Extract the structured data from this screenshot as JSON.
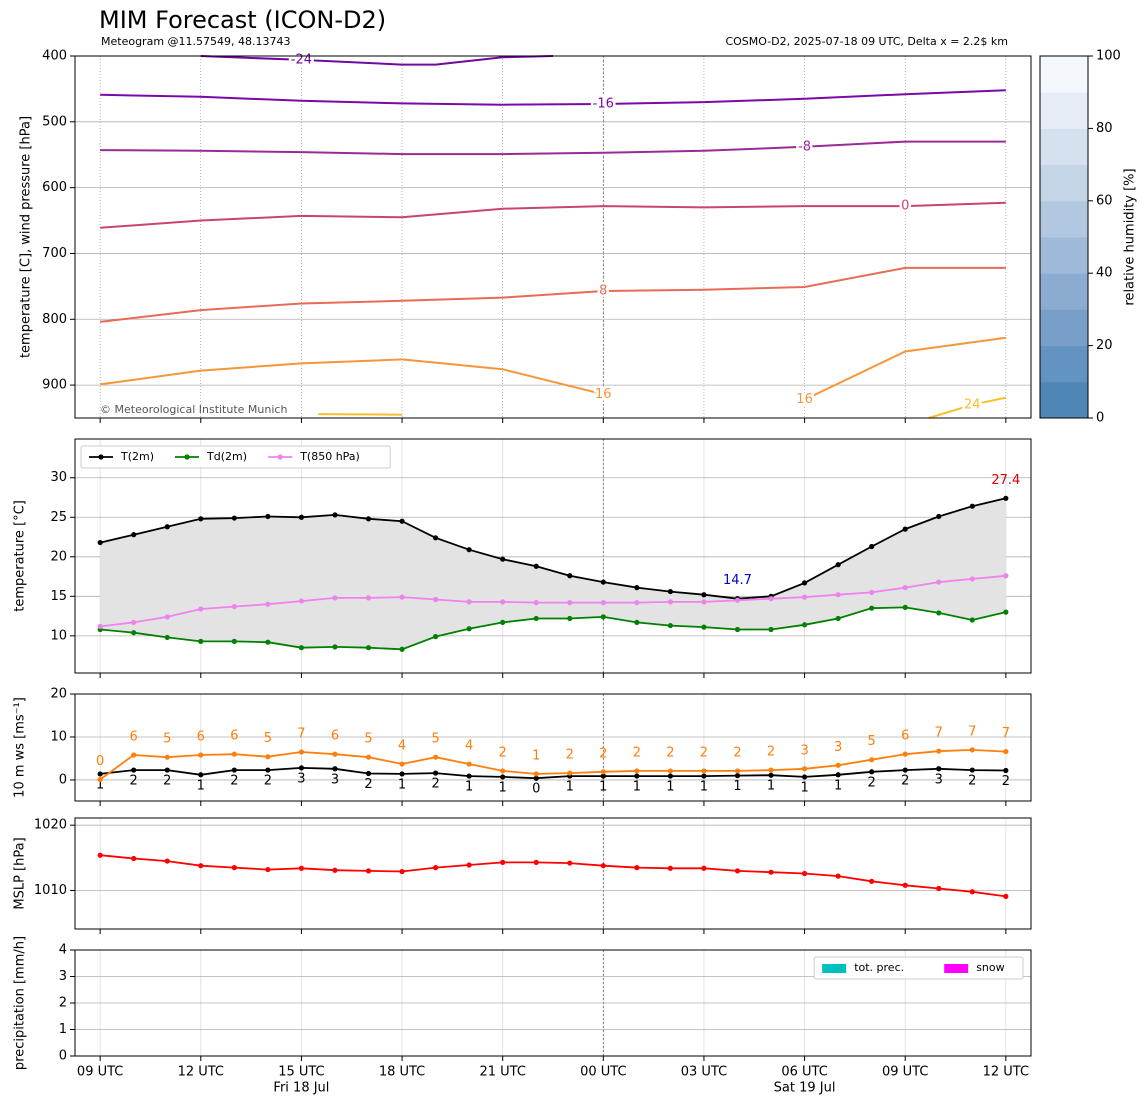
{
  "title": "MIM Forecast (ICON-D2)",
  "subtitle": "Meteogram @11.57549, 48.13743",
  "run_info": "COSMO-D2, 2025-07-18 09 UTC, Delta x = 2.2$ km",
  "credit": "© Meteorological Institute Munich",
  "time": {
    "x": [
      0,
      1,
      2,
      3,
      4,
      5,
      6,
      7,
      8,
      9,
      10,
      11,
      12,
      13,
      14,
      15,
      16,
      17,
      18,
      19,
      20,
      21,
      22,
      23,
      24,
      25,
      26,
      27
    ],
    "xlim": [
      -0.75,
      27.75
    ],
    "xticks": [
      {
        "value": 0,
        "label": "09 UTC"
      },
      {
        "value": 3,
        "label": "12 UTC"
      },
      {
        "value": 6,
        "label": "15 UTC"
      },
      {
        "value": 9,
        "label": "18 UTC"
      },
      {
        "value": 12,
        "label": "21 UTC"
      },
      {
        "value": 15,
        "label": "00 UTC"
      },
      {
        "value": 18,
        "label": "03 UTC"
      },
      {
        "value": 21,
        "label": "06 UTC"
      },
      {
        "value": 24,
        "label": "09 UTC"
      },
      {
        "value": 27,
        "label": "12 UTC"
      }
    ],
    "date_labels": [
      {
        "value": 6,
        "label": "Fri 18 Jul"
      },
      {
        "value": 21,
        "label": "Sat 19 Jul"
      }
    ],
    "day_break": 15
  },
  "chart_data": [
    {
      "type": "contour",
      "ylabel": "temperature [C], wind pressure [hPa]",
      "ylim": [
        950,
        400
      ],
      "yticks": [
        400,
        500,
        600,
        700,
        800,
        900
      ],
      "grid": true,
      "series": [
        {
          "name": "-24",
          "color": "#6f0aa0",
          "x": [
            3,
            6,
            9,
            10,
            12,
            13.5
          ],
          "values": [
            400,
            406,
            413,
            413,
            402,
            400
          ]
        },
        {
          "name": "-16",
          "color": "#7a0aa8",
          "x": [
            0,
            3,
            6,
            9,
            12,
            15,
            18,
            21,
            24,
            27
          ],
          "values": [
            459,
            462,
            468,
            472,
            474,
            473,
            470,
            465,
            458,
            452
          ]
        },
        {
          "name": "-8",
          "color": "#9a2a98",
          "x": [
            0,
            3,
            6,
            9,
            12,
            15,
            18,
            21,
            24,
            27
          ],
          "values": [
            543,
            544,
            546,
            549,
            549,
            547,
            544,
            538,
            530,
            530
          ]
        },
        {
          "name": "0",
          "color": "#c8456e",
          "x": [
            0,
            3,
            6,
            9,
            12,
            15,
            18,
            21,
            24,
            27
          ],
          "values": [
            661,
            650,
            643,
            645,
            632,
            628,
            630,
            628,
            628,
            623
          ]
        },
        {
          "name": "8",
          "color": "#e86b55",
          "x": [
            0,
            3,
            6,
            9,
            12,
            15,
            18,
            21,
            24,
            27
          ],
          "values": [
            804,
            786,
            776,
            772,
            767,
            757,
            755,
            751,
            722,
            722
          ]
        },
        {
          "name": "16",
          "color": "#f5963a",
          "x": [
            0,
            3,
            6,
            9,
            12,
            15,
            18,
            21,
            24,
            27
          ],
          "values": [
            899,
            878,
            867,
            861,
            876,
            914,
            null,
            922,
            849,
            828
          ]
        },
        {
          "name": "24",
          "color": "#f5c02a",
          "x": [
            6.5,
            9,
            17,
            24.7,
            26,
            27
          ],
          "values": [
            944,
            945,
            null,
            950,
            930,
            919
          ]
        }
      ],
      "colorbar": {
        "label": "relative humidity [%]",
        "lim": [
          0,
          100
        ],
        "ticks": [
          0,
          20,
          40,
          60,
          80,
          100
        ],
        "colors": [
          "#4f86b8",
          "#6393c0",
          "#779fc8",
          "#8bacd0",
          "#9fbad8",
          "#b2c8e0",
          "#c4d5e8",
          "#d5e1ef",
          "#e5ecf5",
          "#f4f8fc"
        ]
      }
    },
    {
      "type": "line",
      "ylabel": "temperature [°C]",
      "ylim": [
        5.3,
        34.9
      ],
      "yticks": [
        10,
        15,
        20,
        25,
        30
      ],
      "grid": true,
      "legend": "upper left",
      "fill_between": [
        0,
        1
      ],
      "series": [
        {
          "name": "T(2m)",
          "color": "#000000",
          "values": [
            21.8,
            22.8,
            23.8,
            24.8,
            24.9,
            25.1,
            25.0,
            25.3,
            24.8,
            24.5,
            22.4,
            20.9,
            19.7,
            18.8,
            17.6,
            16.8,
            16.1,
            15.6,
            15.2,
            14.7,
            15.0,
            16.7,
            19.0,
            21.3,
            23.5,
            25.1,
            26.4,
            27.4
          ]
        },
        {
          "name": "Td(2m)",
          "color": "#008000",
          "values": [
            10.8,
            10.4,
            9.8,
            9.3,
            9.3,
            9.2,
            8.5,
            8.6,
            8.5,
            8.3,
            9.9,
            10.9,
            11.7,
            12.2,
            12.2,
            12.4,
            11.7,
            11.3,
            11.1,
            10.8,
            10.8,
            11.4,
            12.2,
            13.5,
            13.6,
            12.9,
            12.0,
            13.0
          ]
        },
        {
          "name": "T(850 hPa)",
          "color": "#ee82ee",
          "values": [
            11.2,
            11.7,
            12.4,
            13.4,
            13.7,
            14.0,
            14.4,
            14.8,
            14.8,
            14.9,
            14.6,
            14.3,
            14.3,
            14.2,
            14.2,
            14.2,
            14.2,
            14.3,
            14.3,
            14.5,
            14.7,
            14.9,
            15.2,
            15.5,
            16.1,
            16.8,
            17.2,
            17.6
          ]
        }
      ],
      "annotations": [
        {
          "text": "27.4",
          "x": 27,
          "y": 27.4,
          "color": "#e00000"
        },
        {
          "text": "14.7",
          "x": 19,
          "y": 14.7,
          "color": "#0000cc"
        }
      ]
    },
    {
      "type": "line",
      "ylabel": "10 m ws [ms⁻¹]",
      "ylim": [
        -4.9,
        20
      ],
      "yticks": [
        0,
        10,
        20
      ],
      "grid": true,
      "series": [
        {
          "color": "#000000",
          "label_side": "below",
          "values": [
            1.4,
            2.3,
            2.3,
            1.2,
            2.3,
            2.3,
            2.8,
            2.6,
            1.5,
            1.4,
            1.6,
            0.9,
            0.7,
            0.4,
            0.9,
            0.9,
            0.9,
            0.9,
            0.9,
            1.0,
            1.1,
            0.7,
            1.2,
            1.9,
            2.3,
            2.6,
            2.3,
            2.2
          ],
          "value_labels": [
            "1",
            "2",
            "2",
            "1",
            "2",
            "2",
            "3",
            "3",
            "2",
            "1",
            "2",
            "1",
            "1",
            "0",
            "1",
            "1",
            "1",
            "1",
            "1",
            "1",
            "1",
            "1",
            "1",
            "2",
            "2",
            "3",
            "2",
            "2"
          ]
        },
        {
          "color": "#ff7f0e",
          "label_side": "above",
          "values": [
            0.1,
            5.8,
            5.3,
            5.8,
            6.0,
            5.4,
            6.5,
            6.0,
            5.3,
            3.7,
            5.3,
            3.7,
            2.1,
            1.4,
            1.6,
            1.9,
            2.1,
            2.1,
            2.1,
            2.1,
            2.3,
            2.6,
            3.4,
            4.7,
            6.0,
            6.7,
            7.0,
            6.6
          ],
          "value_labels": [
            "0",
            "6",
            "5",
            "6",
            "6",
            "5",
            "7",
            "6",
            "5",
            "4",
            "5",
            "4",
            "2",
            "1",
            "2",
            "2",
            "2",
            "2",
            "2",
            "2",
            "2",
            "3",
            "3",
            "5",
            "6",
            "7",
            "7",
            "7"
          ]
        }
      ]
    },
    {
      "type": "line",
      "ylabel": "MSLP [hPa]",
      "ylim": [
        1004.1,
        1021.1
      ],
      "yticks": [
        {
          "value": 1010,
          "label": "1010"
        },
        {
          "value": 1020,
          "label": "1020"
        }
      ],
      "grid": true,
      "series": [
        {
          "color": "#ff0000",
          "values": [
            1015.4,
            1014.9,
            1014.5,
            1013.8,
            1013.5,
            1013.2,
            1013.4,
            1013.1,
            1013.0,
            1012.9,
            1013.5,
            1013.9,
            1014.3,
            1014.3,
            1014.2,
            1013.8,
            1013.5,
            1013.4,
            1013.4,
            1013.0,
            1012.8,
            1012.6,
            1012.2,
            1011.4,
            1010.8,
            1010.3,
            1009.8,
            1009.1
          ]
        }
      ]
    },
    {
      "type": "bar",
      "ylabel": "precipitation [mm/h]",
      "ylim": [
        0,
        4
      ],
      "yticks": [
        0,
        1,
        2,
        3,
        4
      ],
      "grid": true,
      "legend": "upper right",
      "series": [
        {
          "name": "tot. prec.",
          "color": "#00bfbf",
          "values": [
            0,
            0,
            0,
            0,
            0,
            0,
            0,
            0,
            0,
            0,
            0,
            0,
            0,
            0,
            0,
            0,
            0,
            0,
            0,
            0,
            0,
            0,
            0,
            0,
            0,
            0,
            0,
            0
          ]
        },
        {
          "name": "snow",
          "color": "#ff00ff",
          "values": [
            0,
            0,
            0,
            0,
            0,
            0,
            0,
            0,
            0,
            0,
            0,
            0,
            0,
            0,
            0,
            0,
            0,
            0,
            0,
            0,
            0,
            0,
            0,
            0,
            0,
            0,
            0,
            0
          ]
        }
      ]
    }
  ]
}
